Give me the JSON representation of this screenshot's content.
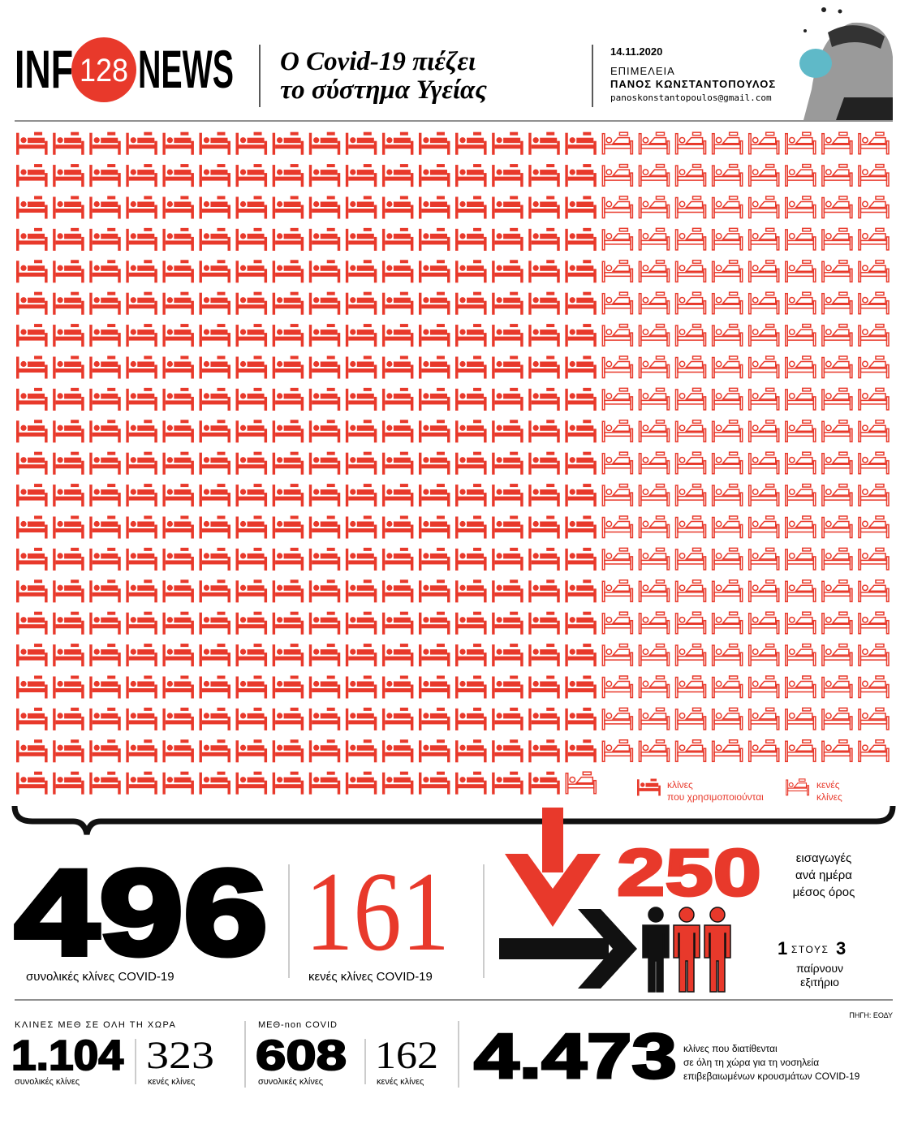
{
  "header": {
    "logo_left": "INF",
    "logo_number": "128",
    "logo_right": "NEWS",
    "title": [
      "Ο Covid-19 πιέζει",
      "το σύστημα Υγείας"
    ],
    "date": "14.11.2020",
    "credit_label": "ΕΠΙΜΕΛΕΙΑ",
    "author": "ΠΑΝΟΣ ΚΩΝΣΤΑΝΤΟΠΟΥΛΟΣ",
    "email": "panoskonstantopoulos@gmail.com"
  },
  "legend": {
    "used": [
      "κλίνες",
      "που χρησιμοποιούνται"
    ],
    "empty": [
      "κενές",
      "κλίνες"
    ]
  },
  "stats": {
    "total": {
      "value": 496,
      "label": "συνολικές κλίνες COVID-19"
    },
    "empty": {
      "value": 161,
      "label": "κενές κλίνες COVID-19"
    },
    "admissions": {
      "value": 250,
      "label": [
        "εισαγωγές",
        "ανά ημέρα",
        "μέσος όρος"
      ]
    },
    "discharge": {
      "numerator": 1,
      "word": "ΣΤΟΥΣ",
      "denominator": 3,
      "label": [
        "παίρνουν",
        "εξιτήριο"
      ]
    }
  },
  "footer": {
    "source": "ΠΗΓΗ: ΕΟΔΥ",
    "icu": {
      "heading": "ΚΛΙΝΕΣ ΜΕΘ ΣΕ ΟΛΗ ΤΗ ΧΩΡΑ",
      "total": "1.104",
      "total_label": "συνολικές κλίνες",
      "empty": 323,
      "empty_label": "κενές κλίνες"
    },
    "icu_non_covid": {
      "heading": "ΜΕΘ-non COVID",
      "total": 608,
      "total_label": "συνολικές κλίνες",
      "empty": 162,
      "empty_label": "κενές κλίνες"
    },
    "national": {
      "value": "4.473",
      "label": [
        "κλίνες που διατίθενται",
        "σε όλη τη χώρα για τη νοσηλεία",
        "επιβεβαιωμένων κρουσμάτων COVID-19"
      ]
    }
  }
}
